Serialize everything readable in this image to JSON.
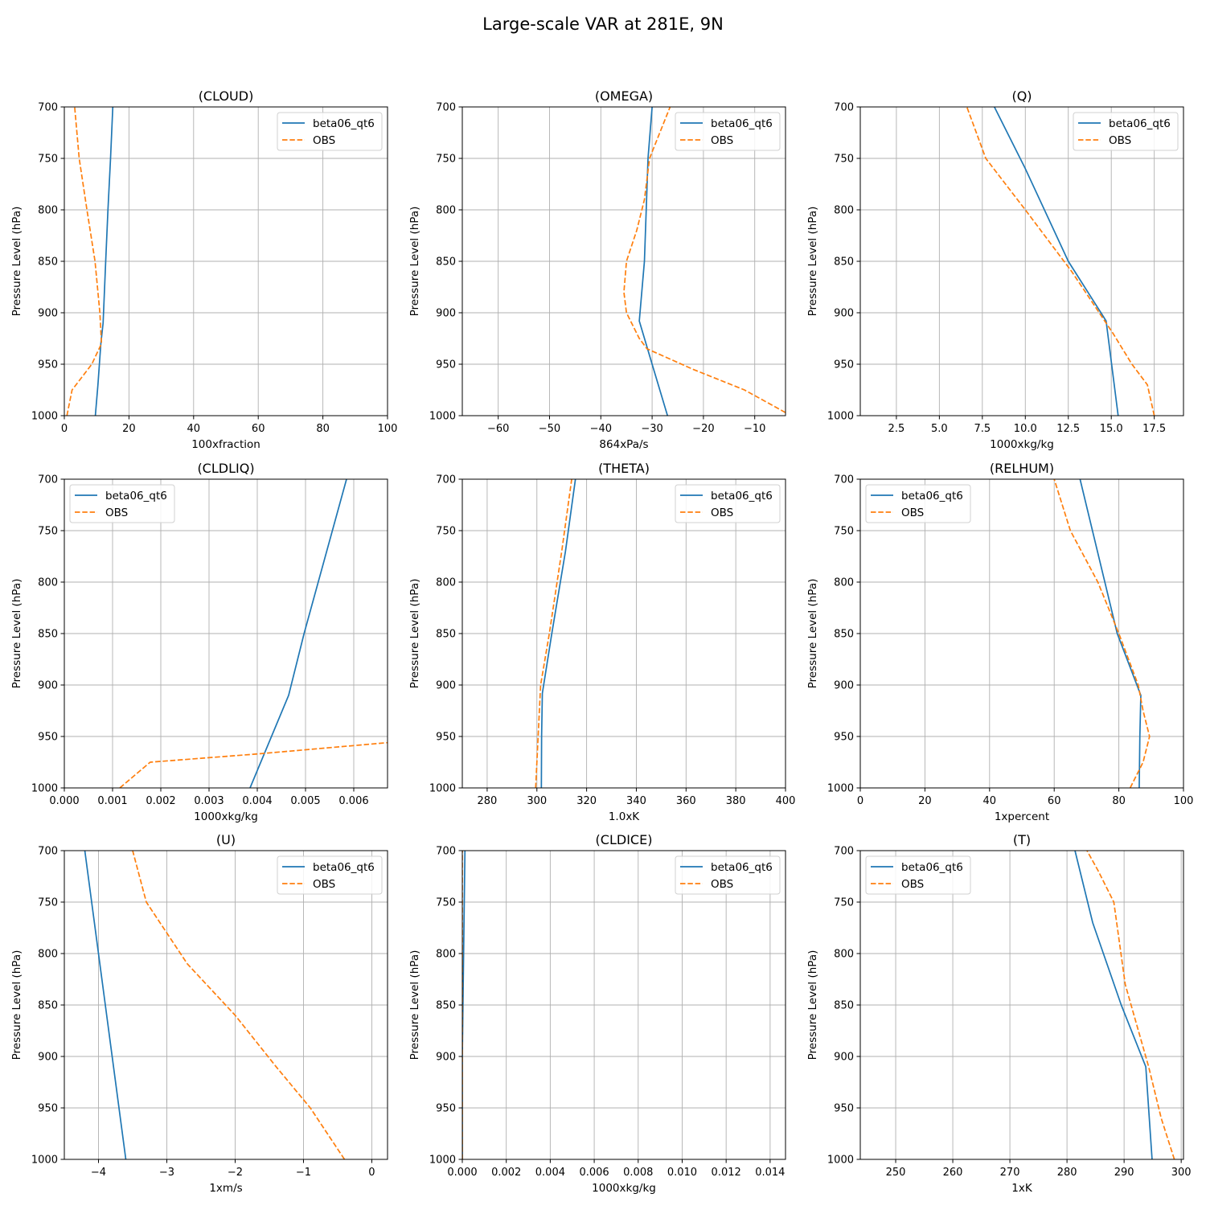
{
  "figure": {
    "title": "Large-scale VAR at 281E, 9N"
  },
  "chart_data": [
    {
      "type": "line",
      "title": "(CLOUD)",
      "xlabel": "100xfraction",
      "ylabel": "Pressure Level (hPa)",
      "xlim": [
        0,
        100
      ],
      "ylim": [
        1000,
        700
      ],
      "y_inverted": true,
      "xticks": [
        "0",
        "20",
        "40",
        "60",
        "80",
        "100"
      ],
      "xtick_values": [
        0,
        20,
        40,
        60,
        80,
        100
      ],
      "yticks": [
        "700",
        "750",
        "800",
        "850",
        "900",
        "950",
        "1000"
      ],
      "ytick_values": [
        700,
        750,
        800,
        850,
        900,
        950,
        1000
      ],
      "grid": true,
      "legend_loc": "upper right",
      "series": [
        {
          "name": "beta06_qt6",
          "style": "solid",
          "color": "#1f77b4",
          "x": [
            9.6,
            10.4,
            11.3,
            12.0,
            12.8,
            13.5,
            14.3,
            15.0
          ],
          "y": [
            1000,
            970,
            930,
            910,
            850,
            800,
            750,
            700
          ]
        },
        {
          "name": "OBS",
          "style": "dashed",
          "color": "#ff7f0e",
          "x": [
            0.8,
            2.4,
            8.5,
            11.5,
            11.0,
            9.5,
            7.0,
            4.6,
            3.2
          ],
          "y": [
            1000,
            975,
            950,
            930,
            900,
            850,
            800,
            750,
            700
          ]
        }
      ]
    },
    {
      "type": "line",
      "title": "(OMEGA)",
      "xlabel": "864xPa/s",
      "ylabel": "Pressure Level (hPa)",
      "xlim": [
        -67,
        -4
      ],
      "ylim": [
        1000,
        700
      ],
      "y_inverted": true,
      "xticks": [
        "−60",
        "−50",
        "−40",
        "−30",
        "−20",
        "−10"
      ],
      "xtick_values": [
        -60,
        -50,
        -40,
        -30,
        -20,
        -10
      ],
      "yticks": [
        "700",
        "750",
        "800",
        "850",
        "900",
        "950",
        "1000"
      ],
      "ytick_values": [
        700,
        750,
        800,
        850,
        900,
        950,
        1000
      ],
      "grid": true,
      "legend_loc": "upper right",
      "series": [
        {
          "name": "beta06_qt6",
          "style": "solid",
          "color": "#1f77b4",
          "x": [
            -27.0,
            -30.0,
            -32.5,
            -31.5,
            -30.8,
            -30.0
          ],
          "y": [
            1000,
            950,
            908,
            850,
            750,
            700
          ]
        },
        {
          "name": "OBS",
          "style": "dashed",
          "color": "#ff7f0e",
          "x": [
            -4.0,
            -12.0,
            -22.0,
            -31.0,
            -32.5,
            -35.0,
            -35.5,
            -35.0,
            -33.0,
            -31.5,
            -30.5,
            -26.5
          ],
          "y": [
            997,
            975,
            955,
            935,
            925,
            900,
            880,
            850,
            820,
            790,
            750,
            700
          ]
        }
      ]
    },
    {
      "type": "line",
      "title": "(Q)",
      "xlabel": "1000xkg/kg",
      "ylabel": "Pressure Level (hPa)",
      "xlim": [
        0.4,
        19.2
      ],
      "ylim": [
        1000,
        700
      ],
      "y_inverted": true,
      "xticks": [
        "2.5",
        "5.0",
        "7.5",
        "10.0",
        "12.5",
        "15.0",
        "17.5"
      ],
      "xtick_values": [
        2.5,
        5.0,
        7.5,
        10.0,
        12.5,
        15.0,
        17.5
      ],
      "yticks": [
        "700",
        "750",
        "800",
        "850",
        "900",
        "950",
        "1000"
      ],
      "ytick_values": [
        700,
        750,
        800,
        850,
        900,
        950,
        1000
      ],
      "grid": true,
      "legend_loc": "upper right",
      "series": [
        {
          "name": "beta06_qt6",
          "style": "solid",
          "color": "#1f77b4",
          "x": [
            15.4,
            14.7,
            14.4,
            12.5,
            10.0,
            8.2
          ],
          "y": [
            1000,
            908,
            900,
            850,
            760,
            700
          ]
        },
        {
          "name": "OBS",
          "style": "dashed",
          "color": "#ff7f0e",
          "x": [
            17.5,
            17.1,
            16.2,
            15.1,
            14.3,
            12.7,
            10.0,
            7.7,
            6.6
          ],
          "y": [
            1000,
            970,
            950,
            920,
            900,
            860,
            800,
            750,
            700
          ]
        }
      ]
    },
    {
      "type": "line",
      "title": "(CLDLIQ)",
      "xlabel": "1000xkg/kg",
      "ylabel": "Pressure Level (hPa)",
      "xlim": [
        0,
        0.0067
      ],
      "ylim": [
        1000,
        700
      ],
      "y_inverted": true,
      "xticks": [
        "0.000",
        "0.001",
        "0.002",
        "0.003",
        "0.004",
        "0.005",
        "0.006"
      ],
      "xtick_values": [
        0,
        0.001,
        0.002,
        0.003,
        0.004,
        0.005,
        0.006
      ],
      "yticks": [
        "700",
        "750",
        "800",
        "850",
        "900",
        "950",
        "1000"
      ],
      "ytick_values": [
        700,
        750,
        800,
        850,
        900,
        950,
        1000
      ],
      "grid": true,
      "legend_loc": "upper left",
      "series": [
        {
          "name": "beta06_qt6",
          "style": "solid",
          "color": "#1f77b4",
          "x": [
            0.00385,
            0.00465,
            0.00497,
            0.00585
          ],
          "y": [
            1000,
            910,
            850,
            700
          ]
        },
        {
          "name": "OBS",
          "style": "dashed",
          "color": "#ff7f0e",
          "x": [
            0.00115,
            0.00178,
            0.004,
            0.0067
          ],
          "y": [
            1000,
            975,
            967,
            956
          ]
        }
      ]
    },
    {
      "type": "line",
      "title": "(THETA)",
      "xlabel": "1.0xK",
      "ylabel": "Pressure Level (hPa)",
      "xlim": [
        270,
        400
      ],
      "ylim": [
        1000,
        700
      ],
      "y_inverted": true,
      "xticks": [
        "280",
        "300",
        "320",
        "340",
        "360",
        "380",
        "400"
      ],
      "xtick_values": [
        280,
        300,
        320,
        340,
        360,
        380,
        400
      ],
      "yticks": [
        "700",
        "750",
        "800",
        "850",
        "900",
        "950",
        "1000"
      ],
      "ytick_values": [
        700,
        750,
        800,
        850,
        900,
        950,
        1000
      ],
      "grid": true,
      "legend_loc": "upper right",
      "series": [
        {
          "name": "beta06_qt6",
          "style": "solid",
          "color": "#1f77b4",
          "x": [
            301.8,
            301.9,
            302.2,
            306.0,
            311.5,
            315.5
          ],
          "y": [
            1000,
            950,
            908,
            850,
            770,
            700
          ]
        },
        {
          "name": "OBS",
          "style": "dashed",
          "color": "#ff7f0e",
          "x": [
            299.5,
            300.5,
            301.5,
            305.0,
            310.0,
            314.0
          ],
          "y": [
            1000,
            950,
            900,
            850,
            770,
            700
          ]
        }
      ]
    },
    {
      "type": "line",
      "title": "(RELHUM)",
      "xlabel": "1xpercent",
      "ylabel": "Pressure Level (hPa)",
      "xlim": [
        0,
        100
      ],
      "ylim": [
        1000,
        700
      ],
      "y_inverted": true,
      "xticks": [
        "0",
        "20",
        "40",
        "60",
        "80",
        "100"
      ],
      "xtick_values": [
        0,
        20,
        40,
        60,
        80,
        100
      ],
      "yticks": [
        "700",
        "750",
        "800",
        "850",
        "900",
        "950",
        "1000"
      ],
      "ytick_values": [
        700,
        750,
        800,
        850,
        900,
        950,
        1000
      ],
      "grid": true,
      "legend_loc": "upper left",
      "series": [
        {
          "name": "beta06_qt6",
          "style": "solid",
          "color": "#1f77b4",
          "x": [
            86.3,
            86.5,
            86.8,
            79.5,
            68.0
          ],
          "y": [
            1000,
            950,
            910,
            850,
            700
          ]
        },
        {
          "name": "OBS",
          "style": "dashed",
          "color": "#ff7f0e",
          "x": [
            83.5,
            87.5,
            89.5,
            87.5,
            86.0,
            80.0,
            73.5,
            65.0,
            60.0
          ],
          "y": [
            1000,
            975,
            950,
            925,
            900,
            850,
            800,
            750,
            700
          ]
        }
      ]
    },
    {
      "type": "line",
      "title": "(U)",
      "xlabel": "1xm/s",
      "ylabel": "Pressure Level (hPa)",
      "xlim": [
        -4.5,
        0.23
      ],
      "ylim": [
        1000,
        700
      ],
      "y_inverted": true,
      "xticks": [
        "−4",
        "−3",
        "−2",
        "−1",
        "0"
      ],
      "xtick_values": [
        -4,
        -3,
        -2,
        -1,
        0
      ],
      "yticks": [
        "700",
        "750",
        "800",
        "850",
        "900",
        "950",
        "1000"
      ],
      "ytick_values": [
        700,
        750,
        800,
        850,
        900,
        950,
        1000
      ],
      "grid": true,
      "legend_loc": "upper right",
      "series": [
        {
          "name": "beta06_qt6",
          "style": "solid",
          "color": "#1f77b4",
          "x": [
            -3.6,
            -3.8,
            -4.2
          ],
          "y": [
            1000,
            900,
            700
          ]
        },
        {
          "name": "OBS",
          "style": "dashed",
          "color": "#ff7f0e",
          "x": [
            -0.4,
            -0.9,
            -1.4,
            -2.0,
            -2.7,
            -3.0,
            -3.3,
            -3.5
          ],
          "y": [
            1000,
            950,
            910,
            860,
            810,
            780,
            750,
            700
          ]
        }
      ]
    },
    {
      "type": "line",
      "title": "(CLDICE)",
      "xlabel": "1000xkg/kg",
      "ylabel": "Pressure Level (hPa)",
      "xlim": [
        0,
        0.0147
      ],
      "ylim": [
        1000,
        700
      ],
      "y_inverted": true,
      "xticks": [
        "0.000",
        "0.002",
        "0.004",
        "0.006",
        "0.008",
        "0.010",
        "0.012",
        "0.014"
      ],
      "xtick_values": [
        0,
        0.002,
        0.004,
        0.006,
        0.008,
        0.01,
        0.012,
        0.014
      ],
      "yticks": [
        "700",
        "750",
        "800",
        "850",
        "900",
        "950",
        "1000"
      ],
      "ytick_values": [
        700,
        750,
        800,
        850,
        900,
        950,
        1000
      ],
      "grid": true,
      "legend_loc": "upper right",
      "series": [
        {
          "name": "beta06_qt6",
          "style": "solid",
          "color": "#1f77b4",
          "x": [
            0,
            0,
            3e-05,
            0.00012
          ],
          "y": [
            1000,
            900,
            850,
            700
          ]
        },
        {
          "name": "OBS",
          "style": "dashed",
          "color": "#ff7f0e",
          "x": [
            0,
            0
          ],
          "y": [
            1000,
            700
          ]
        }
      ]
    },
    {
      "type": "line",
      "title": "(T)",
      "xlabel": "1xK",
      "ylabel": "Pressure Level (hPa)",
      "xlim": [
        243.8,
        300.4
      ],
      "ylim": [
        1000,
        700
      ],
      "y_inverted": true,
      "xticks": [
        "250",
        "260",
        "270",
        "280",
        "290",
        "300"
      ],
      "xtick_values": [
        250,
        260,
        270,
        280,
        290,
        300
      ],
      "yticks": [
        "700",
        "750",
        "800",
        "850",
        "900",
        "950",
        "1000"
      ],
      "ytick_values": [
        700,
        750,
        800,
        850,
        900,
        950,
        1000
      ],
      "grid": true,
      "legend_loc": "upper left",
      "series": [
        {
          "name": "beta06_qt6",
          "style": "solid",
          "color": "#1f77b4",
          "x": [
            294.9,
            293.8,
            289.5,
            284.5,
            281.4
          ],
          "y": [
            1000,
            910,
            850,
            770,
            700
          ]
        },
        {
          "name": "OBS",
          "style": "dashed",
          "color": "#ff7f0e",
          "x": [
            298.8,
            296.5,
            294.3,
            290.2,
            288.2,
            285.5,
            283.5
          ],
          "y": [
            1000,
            960,
            910,
            830,
            750,
            720,
            700
          ]
        }
      ]
    }
  ]
}
